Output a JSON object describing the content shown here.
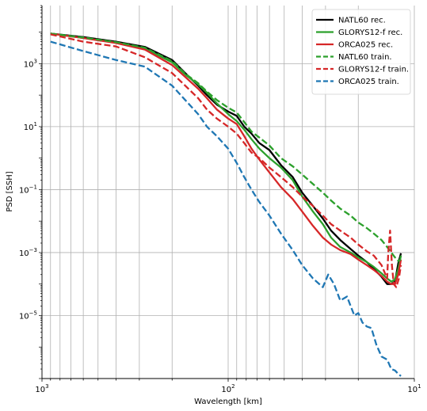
{
  "chart_data": {
    "type": "line",
    "xlabel": "Wavelength [km]",
    "ylabel": "PSD [SSH]",
    "xscale": "log",
    "xaxis_reversed": true,
    "yscale": "log",
    "xlim": [
      1000,
      10
    ],
    "ylim": [
      1e-07,
      70000
    ],
    "x_tick_labels": [
      {
        "value": 1000,
        "base": "10",
        "exp": "3"
      },
      {
        "value": 100,
        "base": "10",
        "exp": "2"
      },
      {
        "value": 10,
        "base": "10",
        "exp": "1"
      }
    ],
    "y_tick_labels": [
      {
        "value": 1000,
        "base": "10",
        "exp": "3"
      },
      {
        "value": 10,
        "base": "10",
        "exp": "1"
      },
      {
        "value": 0.1,
        "base": "10",
        "exp": "−1"
      },
      {
        "value": 0.001,
        "base": "10",
        "exp": "−3"
      },
      {
        "value": 1e-05,
        "base": "10",
        "exp": "−5"
      }
    ],
    "grid": "both-major-and-minor-x",
    "legend_position": "top-right",
    "series": [
      {
        "name": "NATL60 rec.",
        "color": "#000000",
        "dash": "solid",
        "x": [
          900,
          600,
          400,
          280,
          200,
          170,
          145,
          130,
          115,
          100,
          90,
          82,
          75,
          68,
          60,
          52,
          45,
          40,
          35,
          31,
          28,
          25,
          22,
          20,
          18,
          16.5,
          15,
          14,
          13.3,
          12.7,
          12.2,
          11.8
        ],
        "y": [
          9000,
          7000,
          5000,
          3400,
          1300,
          500,
          200,
          100,
          50,
          30,
          22,
          10,
          6,
          3,
          1.8,
          0.6,
          0.25,
          0.08,
          0.03,
          0.012,
          0.005,
          0.0025,
          0.0013,
          0.0008,
          0.0005,
          0.0003,
          0.00017,
          0.0001,
          0.0001,
          0.00012,
          0.00045,
          0.00095
        ]
      },
      {
        "name": "GLORYS12-f rec.",
        "color": "#2ca02c",
        "dash": "solid",
        "x": [
          900,
          600,
          400,
          280,
          200,
          170,
          145,
          130,
          115,
          100,
          90,
          82,
          75,
          68,
          60,
          52,
          45,
          40,
          35,
          31,
          28,
          25,
          22,
          20,
          18,
          16.5,
          15,
          14,
          13.3,
          12.7,
          12.2,
          11.8
        ],
        "y": [
          9000,
          6500,
          4700,
          3000,
          1100,
          450,
          220,
          120,
          55,
          25,
          15,
          8,
          4,
          2,
          1,
          0.5,
          0.2,
          0.06,
          0.02,
          0.008,
          0.003,
          0.0015,
          0.001,
          0.0007,
          0.0005,
          0.00035,
          0.00022,
          0.00015,
          0.00012,
          0.00014,
          0.0003,
          0.0008
        ]
      },
      {
        "name": "ORCA025 rec.",
        "color": "#d62728",
        "dash": "solid",
        "x": [
          900,
          600,
          400,
          280,
          200,
          170,
          145,
          130,
          115,
          100,
          90,
          82,
          75,
          68,
          60,
          52,
          45,
          40,
          35,
          31,
          28,
          25,
          22,
          20,
          18,
          16.5,
          15,
          14,
          13.3,
          12.7,
          12.2,
          11.8
        ],
        "y": [
          9000,
          6500,
          4500,
          2800,
          900,
          380,
          160,
          80,
          35,
          18,
          12,
          5,
          2,
          0.9,
          0.35,
          0.12,
          0.05,
          0.02,
          0.007,
          0.003,
          0.0018,
          0.0012,
          0.0009,
          0.0006,
          0.0004,
          0.00028,
          0.00018,
          0.00012,
          0.0001,
          0.0001,
          0.0002,
          0.0006
        ]
      },
      {
        "name": "NATL60 train.",
        "color": "#2ca02c",
        "dash": "dashed",
        "x": [
          900,
          600,
          400,
          280,
          200,
          170,
          145,
          130,
          115,
          100,
          90,
          82,
          75,
          68,
          60,
          52,
          45,
          40,
          35,
          31,
          28,
          25,
          22,
          20,
          18,
          16.5,
          15,
          14,
          13.3,
          12.7,
          12.2,
          11.8
        ],
        "y": [
          9000,
          6800,
          4800,
          3200,
          1200,
          480,
          240,
          130,
          70,
          40,
          28,
          14,
          7,
          4.5,
          2.5,
          1,
          0.55,
          0.3,
          0.15,
          0.08,
          0.045,
          0.025,
          0.015,
          0.009,
          0.006,
          0.004,
          0.0025,
          0.0015,
          0.001,
          0.0007,
          0.00055,
          0.0006
        ]
      },
      {
        "name": "GLORYS12-f train.",
        "color": "#d62728",
        "dash": "dashed",
        "x": [
          900,
          600,
          400,
          280,
          200,
          170,
          145,
          130,
          115,
          100,
          90,
          82,
          75,
          68,
          60,
          52,
          45,
          40,
          35,
          31,
          28,
          25,
          22,
          20,
          18,
          16.5,
          15,
          14,
          13.8,
          13.5,
          13.2,
          12.9,
          12.5,
          12.1,
          11.8
        ],
        "y": [
          8500,
          5000,
          3500,
          1600,
          500,
          200,
          80,
          35,
          18,
          10,
          6,
          3,
          1.5,
          1,
          0.5,
          0.25,
          0.12,
          0.06,
          0.03,
          0.015,
          0.008,
          0.005,
          0.003,
          0.0018,
          0.0011,
          0.0008,
          0.0004,
          0.00015,
          0.001,
          0.005,
          0.0004,
          0.0001,
          8e-05,
          0.00015,
          0.0004
        ]
      },
      {
        "name": "ORCA025 train.",
        "color": "#1f77b4",
        "dash": "dashed",
        "x": [
          900,
          600,
          400,
          280,
          200,
          170,
          145,
          130,
          115,
          100,
          90,
          82,
          75,
          68,
          60,
          52,
          45,
          40,
          35,
          31,
          29,
          27,
          25,
          23,
          21,
          20,
          19,
          18,
          17,
          16,
          15,
          14,
          13.3,
          12.7,
          12.2,
          11.8
        ],
        "y": [
          5000,
          2500,
          1300,
          800,
          200,
          70,
          25,
          10,
          5,
          2,
          0.7,
          0.25,
          0.1,
          0.04,
          0.015,
          0.004,
          0.0012,
          0.0004,
          0.00015,
          8e-05,
          0.0002,
          0.0001,
          3e-05,
          4e-05,
          1e-05,
          1.2e-05,
          6e-06,
          4.5e-06,
          4e-06,
          1.2e-06,
          5e-07,
          4e-07,
          2e-07,
          1.8e-07,
          1.4e-07,
          1.2e-07
        ]
      }
    ]
  }
}
